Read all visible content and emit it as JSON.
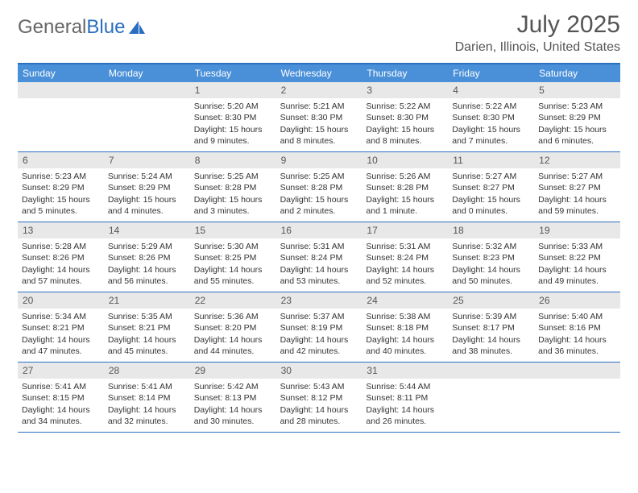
{
  "brand": {
    "part1": "General",
    "part2": "Blue"
  },
  "title": "July 2025",
  "location": "Darien, Illinois, United States",
  "colors": {
    "header_bg": "#4a90d9",
    "border": "#2a6fbf",
    "daynum_bg": "#e8e8e8",
    "text": "#333333",
    "muted": "#555555",
    "white": "#ffffff"
  },
  "weekdays": [
    "Sunday",
    "Monday",
    "Tuesday",
    "Wednesday",
    "Thursday",
    "Friday",
    "Saturday"
  ],
  "weeks": [
    [
      null,
      null,
      {
        "n": "1",
        "sr": "5:20 AM",
        "ss": "8:30 PM",
        "dl": "15 hours and 9 minutes."
      },
      {
        "n": "2",
        "sr": "5:21 AM",
        "ss": "8:30 PM",
        "dl": "15 hours and 8 minutes."
      },
      {
        "n": "3",
        "sr": "5:22 AM",
        "ss": "8:30 PM",
        "dl": "15 hours and 8 minutes."
      },
      {
        "n": "4",
        "sr": "5:22 AM",
        "ss": "8:30 PM",
        "dl": "15 hours and 7 minutes."
      },
      {
        "n": "5",
        "sr": "5:23 AM",
        "ss": "8:29 PM",
        "dl": "15 hours and 6 minutes."
      }
    ],
    [
      {
        "n": "6",
        "sr": "5:23 AM",
        "ss": "8:29 PM",
        "dl": "15 hours and 5 minutes."
      },
      {
        "n": "7",
        "sr": "5:24 AM",
        "ss": "8:29 PM",
        "dl": "15 hours and 4 minutes."
      },
      {
        "n": "8",
        "sr": "5:25 AM",
        "ss": "8:28 PM",
        "dl": "15 hours and 3 minutes."
      },
      {
        "n": "9",
        "sr": "5:25 AM",
        "ss": "8:28 PM",
        "dl": "15 hours and 2 minutes."
      },
      {
        "n": "10",
        "sr": "5:26 AM",
        "ss": "8:28 PM",
        "dl": "15 hours and 1 minute."
      },
      {
        "n": "11",
        "sr": "5:27 AM",
        "ss": "8:27 PM",
        "dl": "15 hours and 0 minutes."
      },
      {
        "n": "12",
        "sr": "5:27 AM",
        "ss": "8:27 PM",
        "dl": "14 hours and 59 minutes."
      }
    ],
    [
      {
        "n": "13",
        "sr": "5:28 AM",
        "ss": "8:26 PM",
        "dl": "14 hours and 57 minutes."
      },
      {
        "n": "14",
        "sr": "5:29 AM",
        "ss": "8:26 PM",
        "dl": "14 hours and 56 minutes."
      },
      {
        "n": "15",
        "sr": "5:30 AM",
        "ss": "8:25 PM",
        "dl": "14 hours and 55 minutes."
      },
      {
        "n": "16",
        "sr": "5:31 AM",
        "ss": "8:24 PM",
        "dl": "14 hours and 53 minutes."
      },
      {
        "n": "17",
        "sr": "5:31 AM",
        "ss": "8:24 PM",
        "dl": "14 hours and 52 minutes."
      },
      {
        "n": "18",
        "sr": "5:32 AM",
        "ss": "8:23 PM",
        "dl": "14 hours and 50 minutes."
      },
      {
        "n": "19",
        "sr": "5:33 AM",
        "ss": "8:22 PM",
        "dl": "14 hours and 49 minutes."
      }
    ],
    [
      {
        "n": "20",
        "sr": "5:34 AM",
        "ss": "8:21 PM",
        "dl": "14 hours and 47 minutes."
      },
      {
        "n": "21",
        "sr": "5:35 AM",
        "ss": "8:21 PM",
        "dl": "14 hours and 45 minutes."
      },
      {
        "n": "22",
        "sr": "5:36 AM",
        "ss": "8:20 PM",
        "dl": "14 hours and 44 minutes."
      },
      {
        "n": "23",
        "sr": "5:37 AM",
        "ss": "8:19 PM",
        "dl": "14 hours and 42 minutes."
      },
      {
        "n": "24",
        "sr": "5:38 AM",
        "ss": "8:18 PM",
        "dl": "14 hours and 40 minutes."
      },
      {
        "n": "25",
        "sr": "5:39 AM",
        "ss": "8:17 PM",
        "dl": "14 hours and 38 minutes."
      },
      {
        "n": "26",
        "sr": "5:40 AM",
        "ss": "8:16 PM",
        "dl": "14 hours and 36 minutes."
      }
    ],
    [
      {
        "n": "27",
        "sr": "5:41 AM",
        "ss": "8:15 PM",
        "dl": "14 hours and 34 minutes."
      },
      {
        "n": "28",
        "sr": "5:41 AM",
        "ss": "8:14 PM",
        "dl": "14 hours and 32 minutes."
      },
      {
        "n": "29",
        "sr": "5:42 AM",
        "ss": "8:13 PM",
        "dl": "14 hours and 30 minutes."
      },
      {
        "n": "30",
        "sr": "5:43 AM",
        "ss": "8:12 PM",
        "dl": "14 hours and 28 minutes."
      },
      {
        "n": "31",
        "sr": "5:44 AM",
        "ss": "8:11 PM",
        "dl": "14 hours and 26 minutes."
      },
      null,
      null
    ]
  ],
  "labels": {
    "sunrise": "Sunrise:",
    "sunset": "Sunset:",
    "daylight": "Daylight:"
  }
}
